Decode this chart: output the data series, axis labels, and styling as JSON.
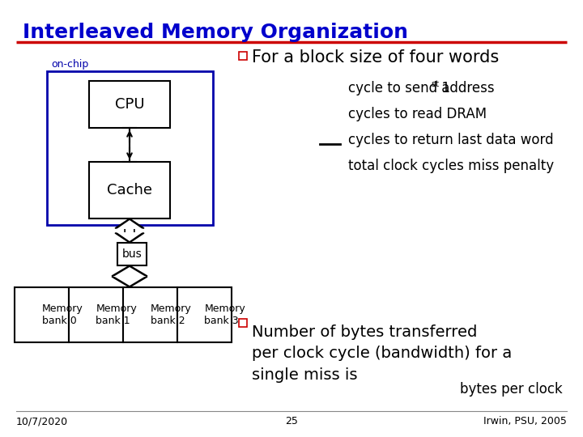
{
  "title": "Interleaved Memory Organization",
  "title_color": "#0000CC",
  "title_fontsize": 18,
  "separator_color": "#CC0000",
  "bg_color": "#FFFFFF",
  "bullet_color": "#CC0000",
  "bullet_text": "For a block size of four words",
  "bullet_fontsize": 15,
  "on_chip_label": "on-chip",
  "on_chip_color": "#0000AA",
  "cpu_label": "CPU",
  "cache_label": "Cache",
  "bus_label": "bus",
  "memory_banks": [
    "Memory\nbank 0",
    "Memory\nbank 1",
    "Memory\nbank 2",
    "Memory\nbank 3"
  ],
  "bullet2_text": "Number of bytes transferred\nper clock cycle (bandwidth) for a\nsingle miss is",
  "bullet2_fontsize": 14,
  "bytes_per_clock": "bytes per clock",
  "date_text": "10/7/2020",
  "page_num": "25",
  "irwin_text": "Irwin, PSU, 2005",
  "footer_fontsize": 9
}
